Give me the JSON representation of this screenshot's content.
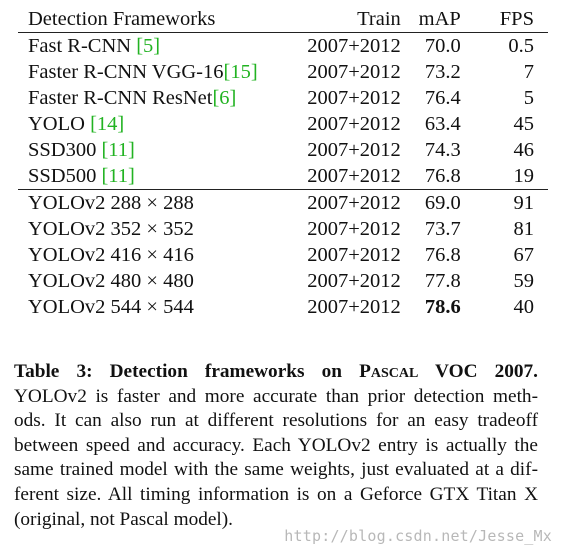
{
  "table": {
    "headers": {
      "name": "Detection Frameworks",
      "train": "Train",
      "map": "mAP",
      "fps": "FPS"
    },
    "group_a": [
      {
        "name": "Fast R-CNN ",
        "cite": "[5]",
        "train": "2007+2012",
        "map": "70.0",
        "fps": "0.5"
      },
      {
        "name": "Faster R-CNN VGG-16",
        "cite": "[15]",
        "train": "2007+2012",
        "map": "73.2",
        "fps": "7"
      },
      {
        "name": "Faster R-CNN ResNet",
        "cite": "[6]",
        "train": "2007+2012",
        "map": "76.4",
        "fps": "5"
      },
      {
        "name": "YOLO ",
        "cite": "[14]",
        "train": "2007+2012",
        "map": "63.4",
        "fps": "45"
      },
      {
        "name": "SSD300 ",
        "cite": "[11]",
        "train": "2007+2012",
        "map": "74.3",
        "fps": "46"
      },
      {
        "name": "SSD500 ",
        "cite": "[11]",
        "train": "2007+2012",
        "map": "76.8",
        "fps": "19"
      }
    ],
    "group_b": [
      {
        "name": "YOLOv2 288 × 288",
        "train": "2007+2012",
        "map": "69.0",
        "fps": "91"
      },
      {
        "name": "YOLOv2 352 × 352",
        "train": "2007+2012",
        "map": "73.7",
        "fps": "81"
      },
      {
        "name": "YOLOv2 416 × 416",
        "train": "2007+2012",
        "map": "76.8",
        "fps": "67"
      },
      {
        "name": "YOLOv2 480 × 480",
        "train": "2007+2012",
        "map": "77.8",
        "fps": "59"
      },
      {
        "name": "YOLOv2 544 × 544",
        "train": "2007+2012",
        "map": "78.6",
        "fps": "40",
        "map_bold": true
      }
    ]
  },
  "caption": {
    "title_prefix": "Table 3:  Detection frameworks on ",
    "title_sc": "Pascal",
    "title_suffix": " VOC 2007.",
    "lines": [
      "YOLOv2 is faster and more accurate than prior detection meth-",
      "ods.  It can also run at different resolutions for an easy tradeoff",
      "between speed and accuracy. Each YOLOv2 entry is actually the",
      "same trained model with the same weights, just evaluated at a dif-",
      "ferent size. All timing information is on a Geforce GTX Titan X",
      "(original, not Pascal model)."
    ]
  },
  "watermark": "http://blog.csdn.net/Jesse_Mx",
  "colors": {
    "citation": "#22b322",
    "watermark": "#b8b8b8"
  }
}
